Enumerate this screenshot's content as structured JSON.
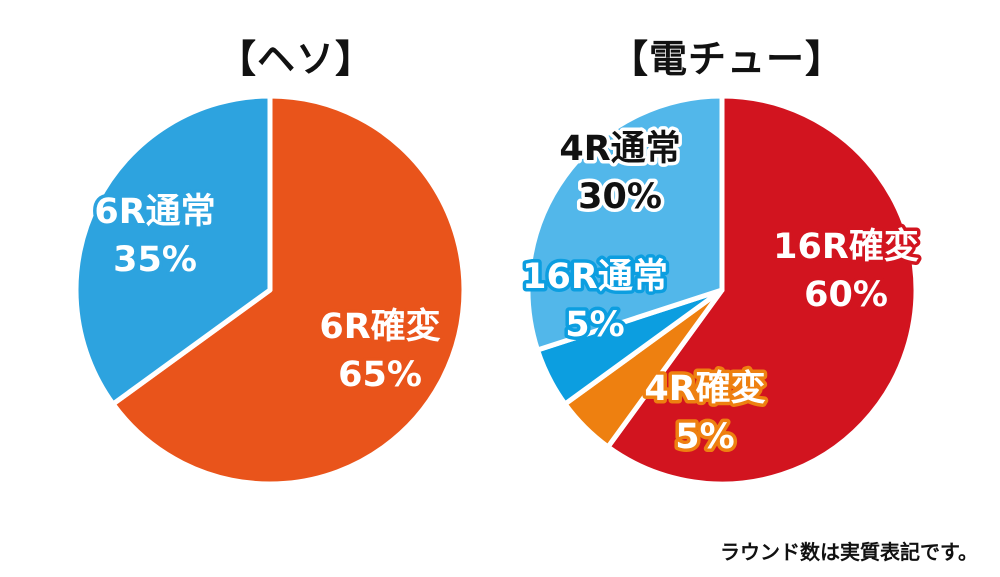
{
  "chart_data": [
    {
      "type": "pie",
      "title": "【ヘソ】",
      "slices": [
        {
          "name": "6R確変",
          "value": 65,
          "label": "65%",
          "color": "#e9541b",
          "text_color": "#ffffff",
          "outline_color": "#e9541b"
        },
        {
          "name": "6R通常",
          "value": 35,
          "label": "35%",
          "color": "#2da3df",
          "text_color": "#ffffff",
          "outline_color": "#2da3df"
        }
      ]
    },
    {
      "type": "pie",
      "title": "【電チュー】",
      "slices": [
        {
          "name": "16R確変",
          "value": 60,
          "label": "60%",
          "color": "#d2141f",
          "text_color": "#ffffff",
          "outline_color": "#d2141f"
        },
        {
          "name": "4R確変",
          "value": 5,
          "label": "5%",
          "color": "#ee8010",
          "text_color": "#ffffff",
          "outline_color": "#ee8010"
        },
        {
          "name": "16R通常",
          "value": 5,
          "label": "5%",
          "color": "#0c9ee0",
          "text_color": "#ffffff",
          "outline_color": "#0c9ee0"
        },
        {
          "name": "4R通常",
          "value": 30,
          "label": "30%",
          "color": "#52b7ea",
          "text_color": "#111111",
          "outline_color": "#ffffff"
        }
      ]
    }
  ],
  "footnote": "ラウンド数は実質表記です。"
}
